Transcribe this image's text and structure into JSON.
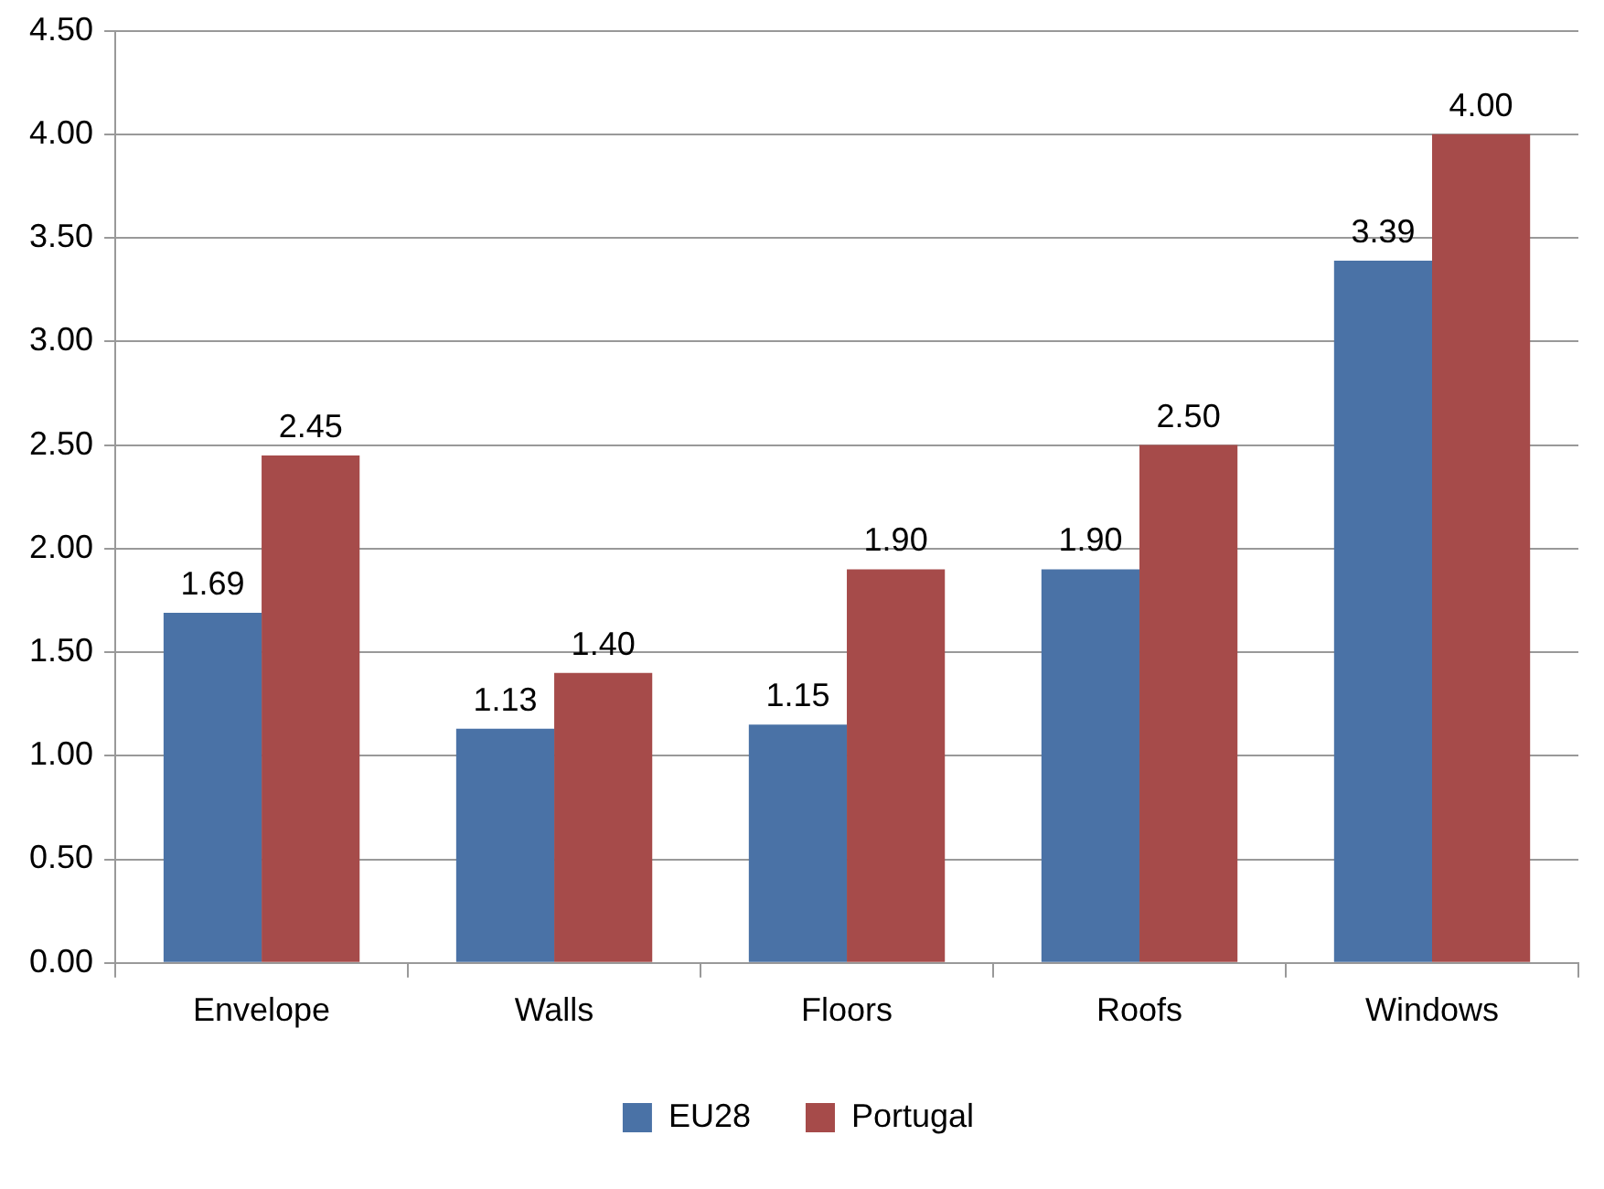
{
  "chart_data": {
    "type": "bar",
    "categories": [
      "Envelope",
      "Walls",
      "Floors",
      "Roofs",
      "Windows"
    ],
    "series": [
      {
        "name": "EU28",
        "color": "#4a72a6",
        "values": [
          1.69,
          1.13,
          1.15,
          1.9,
          3.39
        ],
        "value_labels": [
          "1.69",
          "1.13",
          "1.15",
          "1.90",
          "3.39"
        ]
      },
      {
        "name": "Portugal",
        "color": "#a64b4a",
        "values": [
          2.45,
          1.4,
          1.9,
          2.5,
          4.0
        ],
        "value_labels": [
          "2.45",
          "1.40",
          "1.90",
          "2.50",
          "4.00"
        ]
      }
    ],
    "ylim": [
      0,
      4.5
    ],
    "yticks": [
      {
        "value": 0,
        "label": "0.00"
      },
      {
        "value": 0.5,
        "label": "0.50"
      },
      {
        "value": 1,
        "label": "1.00"
      },
      {
        "value": 1.5,
        "label": "1.50"
      },
      {
        "value": 2,
        "label": "2.00"
      },
      {
        "value": 2.5,
        "label": "2.50"
      },
      {
        "value": 3,
        "label": "3.00"
      },
      {
        "value": 3.5,
        "label": "3.50"
      },
      {
        "value": 4,
        "label": "4.00"
      },
      {
        "value": 4.5,
        "label": "4.50"
      }
    ],
    "grid": "y",
    "legend": "bottom"
  }
}
